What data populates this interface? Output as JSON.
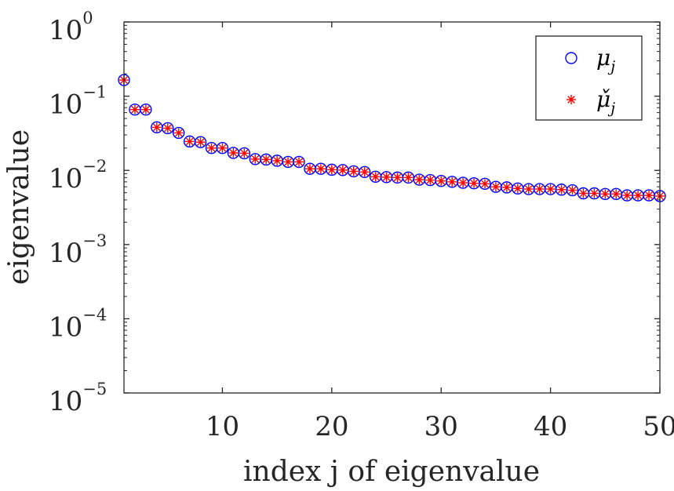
{
  "chart_data": {
    "type": "scatter",
    "xlabel": "index j of eigenvalue",
    "ylabel": "eigenvalue",
    "yscale": "log",
    "xlim": [
      1,
      50
    ],
    "ylim_exponents": [
      -5,
      0
    ],
    "grid": false,
    "legend_position": "top-right",
    "x_ticks": [
      "10",
      "20",
      "30",
      "40",
      "50"
    ],
    "y_tick_exponents": [
      "0",
      "−1",
      "−2",
      "−3",
      "−4",
      "−5"
    ],
    "y_tick_base": "10",
    "series": [
      {
        "name": "μ_j",
        "marker": "circle",
        "color": "#0000ff",
        "x": [
          1,
          2,
          3,
          4,
          5,
          6,
          7,
          8,
          9,
          10,
          11,
          12,
          13,
          14,
          15,
          16,
          17,
          18,
          19,
          20,
          21,
          22,
          23,
          24,
          25,
          26,
          27,
          28,
          29,
          30,
          31,
          32,
          33,
          34,
          35,
          36,
          37,
          38,
          39,
          40,
          41,
          42,
          43,
          44,
          45,
          46,
          47,
          48,
          49,
          50
        ],
        "values": [
          0.165,
          0.066,
          0.066,
          0.038,
          0.037,
          0.032,
          0.0245,
          0.024,
          0.02,
          0.02,
          0.0172,
          0.017,
          0.0142,
          0.014,
          0.0135,
          0.013,
          0.013,
          0.0105,
          0.0105,
          0.0102,
          0.0101,
          0.0097,
          0.0095,
          0.0082,
          0.0081,
          0.008,
          0.008,
          0.0075,
          0.0074,
          0.0072,
          0.007,
          0.0068,
          0.0067,
          0.0066,
          0.006,
          0.0059,
          0.0057,
          0.0056,
          0.0056,
          0.0056,
          0.0055,
          0.0054,
          0.0049,
          0.0049,
          0.0048,
          0.0048,
          0.0046,
          0.0046,
          0.0046,
          0.0045
        ]
      },
      {
        "name": "μ̌_j",
        "marker": "asterisk",
        "color": "#ff0000",
        "x": [
          1,
          2,
          3,
          4,
          5,
          6,
          7,
          8,
          9,
          10,
          11,
          12,
          13,
          14,
          15,
          16,
          17,
          18,
          19,
          20,
          21,
          22,
          23,
          24,
          25,
          26,
          27,
          28,
          29,
          30,
          31,
          32,
          33,
          34,
          35,
          36,
          37,
          38,
          39,
          40,
          41,
          42,
          43,
          44,
          45,
          46,
          47,
          48,
          49,
          50
        ],
        "values": [
          0.165,
          0.066,
          0.066,
          0.038,
          0.037,
          0.032,
          0.0245,
          0.024,
          0.02,
          0.02,
          0.0172,
          0.017,
          0.0142,
          0.014,
          0.0135,
          0.013,
          0.013,
          0.0105,
          0.0105,
          0.0102,
          0.0101,
          0.0097,
          0.0095,
          0.0082,
          0.0081,
          0.008,
          0.008,
          0.0075,
          0.0074,
          0.0072,
          0.007,
          0.0068,
          0.0067,
          0.0066,
          0.006,
          0.0059,
          0.0057,
          0.0056,
          0.0056,
          0.0056,
          0.0055,
          0.0054,
          0.0049,
          0.0049,
          0.0048,
          0.0048,
          0.0046,
          0.0046,
          0.0046,
          0.0045
        ]
      }
    ],
    "legend": {
      "entries": [
        {
          "symbol": "μ",
          "subscript": "j",
          "marker": "circle",
          "color": "#0000ff"
        },
        {
          "symbol": "μ̌",
          "subscript": "j",
          "marker": "asterisk",
          "color": "#ff0000"
        }
      ]
    }
  }
}
